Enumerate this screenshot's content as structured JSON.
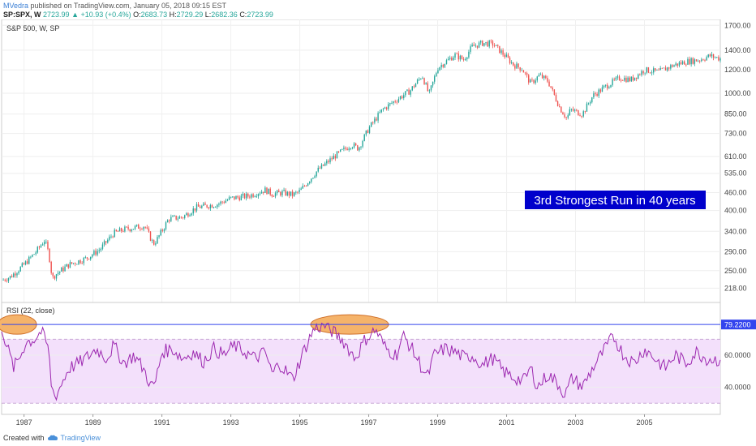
{
  "header": {
    "publisher": "MVedra",
    "published_text": " published on TradingView.com, January 05, 2018 09:15 EST",
    "symbol": "SP:SPX, W",
    "last": "2723.99",
    "change_icon": "triangle-up-icon",
    "change": "+10.93 (+0.4%)",
    "o_label": "O:",
    "o": "2683.73",
    "h_label": "H:",
    "h": "2729.29",
    "l_label": "L:",
    "l": "2682.36",
    "c_label": "C:",
    "c": "2723.99"
  },
  "colors": {
    "up": "#26a69a",
    "down": "#ef5350",
    "rsi_line": "#9c27b0",
    "rsi_band": "#f3e0fb",
    "threshold": "#3344ee",
    "ellipse": "#f5b36a",
    "annotation_bg": "#0000cc"
  },
  "footer": {
    "created_with": "Created with",
    "brand": "TradingView"
  },
  "chart_data": [
    {
      "type": "candlestick",
      "title": "S&P 500, W, SP",
      "y_scale": "log",
      "ylim": [
        195,
        1780
      ],
      "y_ticks": [
        1700,
        1400,
        1200,
        1000,
        850,
        730,
        610,
        535,
        460,
        400,
        340,
        290,
        250,
        218
      ],
      "y_tick_labels": [
        "1700.00",
        "1400.00",
        "1200.00",
        "1000.00",
        "850.00",
        "730.00",
        "610.00",
        "535.00",
        "460.00",
        "400.00",
        "340.00",
        "290.00",
        "250.00",
        "218.00"
      ],
      "xlim": [
        1986.35,
        2007.2
      ],
      "x_ticks": [
        1987,
        1989,
        1991,
        1993,
        1995,
        1997,
        1999,
        2001,
        2003,
        2005
      ],
      "x_tick_labels": [
        "1987",
        "1989",
        "1991",
        "1993",
        "1995",
        "1997",
        "1999",
        "2001",
        "2003",
        "2005"
      ],
      "series": [
        {
          "x": [
            1986.35,
            1986.6,
            1987.0,
            1987.35,
            1987.6,
            1987.72,
            1987.82,
            1987.9,
            1988.3,
            1988.8,
            1989.2,
            1989.6,
            1989.9,
            1990.5,
            1990.75,
            1990.85,
            1991.2,
            1991.6,
            1992.0,
            1992.6,
            1993.0,
            1993.5,
            1994.0,
            1994.2,
            1994.5,
            1994.8,
            1995.0,
            1995.5,
            1996.0,
            1996.5,
            1996.7,
            1997.0,
            1997.4,
            1997.8,
            1998.2,
            1998.55,
            1998.75,
            1999.0,
            1999.5,
            1999.75,
            2000.0,
            2000.3,
            2000.6,
            2000.9,
            2001.2,
            2001.45,
            2001.7,
            2001.95,
            2002.2,
            2002.55,
            2002.75,
            2002.85,
            2003.2,
            2003.5,
            2003.9,
            2004.3,
            2004.6,
            2005.0,
            2005.4,
            2005.8,
            2006.2,
            2006.6,
            2006.9,
            2007.2
          ],
          "close": [
            232,
            238,
            262,
            290,
            318,
            285,
            235,
            242,
            262,
            275,
            295,
            335,
            345,
            355,
            308,
            318,
            375,
            380,
            410,
            420,
            440,
            448,
            470,
            455,
            460,
            452,
            465,
            545,
            610,
            670,
            650,
            760,
            880,
            950,
            1020,
            1150,
            990,
            1220,
            1350,
            1300,
            1440,
            1480,
            1470,
            1360,
            1250,
            1210,
            1080,
            1150,
            1100,
            890,
            820,
            880,
            850,
            980,
            1060,
            1130,
            1110,
            1200,
            1180,
            1240,
            1280,
            1300,
            1340,
            1310
          ]
        }
      ]
    },
    {
      "type": "line",
      "title": "RSI (22, close)",
      "ylim": [
        23,
        93
      ],
      "y_ticks": [
        60,
        40
      ],
      "y_tick_labels": [
        "60.0000",
        "40.0000"
      ],
      "band": [
        30,
        70
      ],
      "threshold": 79.22,
      "threshold_label": "79.2200",
      "series": [
        {
          "x": [
            1986.35,
            1986.5,
            1986.7,
            1986.9,
            1987.05,
            1987.3,
            1987.5,
            1987.7,
            1987.8,
            1987.9,
            1988.0,
            1988.3,
            1988.6,
            1988.9,
            1989.1,
            1989.4,
            1989.6,
            1989.9,
            1990.2,
            1990.5,
            1990.7,
            1990.8,
            1991.0,
            1991.3,
            1991.6,
            1991.9,
            1992.2,
            1992.5,
            1992.8,
            1993.1,
            1993.4,
            1993.7,
            1994.0,
            1994.2,
            1994.4,
            1994.6,
            1994.8,
            1995.1,
            1995.4,
            1995.7,
            1996.0,
            1996.3,
            1996.6,
            1996.9,
            1997.2,
            1997.5,
            1997.8,
            1998.0,
            1998.2,
            1998.5,
            1998.7,
            1998.9,
            1999.2,
            1999.5,
            1999.8,
            2000.0,
            2000.3,
            2000.6,
            2000.9,
            2001.2,
            2001.5,
            2001.7,
            2001.9,
            2002.2,
            2002.5,
            2002.7,
            2002.9,
            2003.2,
            2003.5,
            2003.8,
            2004.1,
            2004.4,
            2004.7,
            2005.0,
            2005.3,
            2005.6,
            2005.9,
            2006.2,
            2006.5,
            2006.8,
            2007.2
          ],
          "values": [
            78,
            66,
            52,
            60,
            68,
            70,
            75,
            65,
            40,
            34,
            38,
            52,
            55,
            60,
            64,
            58,
            66,
            55,
            60,
            50,
            40,
            42,
            62,
            64,
            58,
            62,
            56,
            64,
            60,
            66,
            62,
            58,
            62,
            48,
            55,
            50,
            45,
            62,
            76,
            79,
            74,
            68,
            58,
            70,
            76,
            64,
            60,
            72,
            66,
            54,
            46,
            60,
            64,
            62,
            58,
            60,
            54,
            58,
            50,
            46,
            44,
            52,
            40,
            48,
            42,
            35,
            46,
            40,
            52,
            62,
            72,
            60,
            55,
            64,
            58,
            52,
            60,
            55,
            62,
            58,
            57
          ]
        }
      ]
    }
  ],
  "annotation": "3rd Strongest Run in 40 years"
}
